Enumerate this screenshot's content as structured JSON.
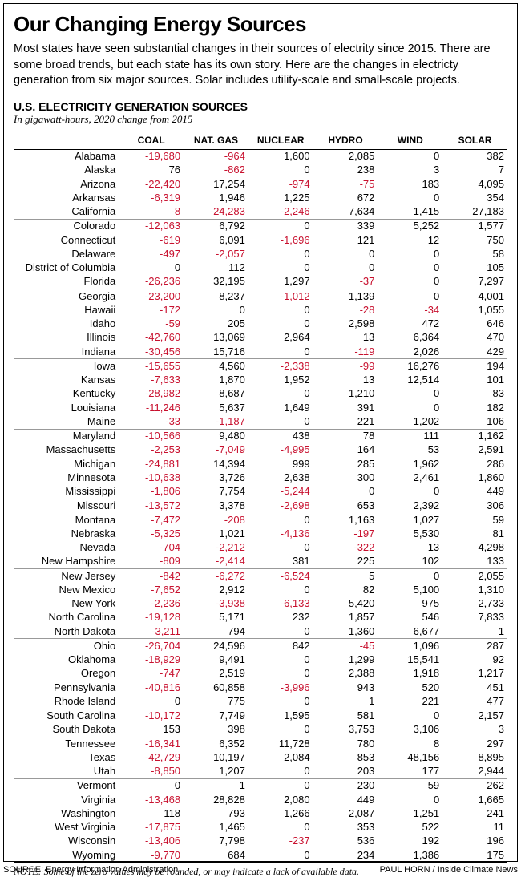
{
  "title": "Our Changing Energy Sources",
  "intro": "Most states have seen substantial changes in their sources of electrity since 2015. There are some broad trends, but each state has its own story. Here are the changes in electricty generation from six major sources. Solar includes utility-scale and small-scale projects.",
  "subtitle": "U.S. ELECTRICITY GENERATION SOURCES",
  "units": "In gigawatt-hours, 2020 change from 2015",
  "columns": [
    "COAL",
    "NAT. GAS",
    "NUCLEAR",
    "HYDRO",
    "WIND",
    "SOLAR"
  ],
  "rows": [
    {
      "state": "Alabama",
      "v": [
        -19680,
        -964,
        1600,
        2085,
        0,
        382
      ]
    },
    {
      "state": "Alaska",
      "v": [
        76,
        -862,
        0,
        238,
        3,
        7
      ]
    },
    {
      "state": "Arizona",
      "v": [
        -22420,
        17254,
        -974,
        -75,
        183,
        4095
      ]
    },
    {
      "state": "Arkansas",
      "v": [
        -6319,
        1946,
        1225,
        672,
        0,
        354
      ]
    },
    {
      "state": "California",
      "v": [
        -8,
        -24283,
        -2246,
        7634,
        1415,
        27183
      ],
      "sepAfter": true
    },
    {
      "state": "Colorado",
      "v": [
        -12063,
        6792,
        0,
        339,
        5252,
        1577
      ]
    },
    {
      "state": "Connecticut",
      "v": [
        -619,
        6091,
        -1696,
        121,
        12,
        750
      ]
    },
    {
      "state": "Delaware",
      "v": [
        -497,
        -2057,
        0,
        0,
        0,
        58
      ]
    },
    {
      "state": "District of Columbia",
      "v": [
        0,
        112,
        0,
        0,
        0,
        105
      ]
    },
    {
      "state": "Florida",
      "v": [
        -26236,
        32195,
        1297,
        -37,
        0,
        7297
      ],
      "sepAfter": true
    },
    {
      "state": "Georgia",
      "v": [
        -23200,
        8237,
        -1012,
        1139,
        0,
        4001
      ]
    },
    {
      "state": "Hawaii",
      "v": [
        -172,
        0,
        0,
        -28,
        -34,
        1055
      ]
    },
    {
      "state": "Idaho",
      "v": [
        -59,
        205,
        0,
        2598,
        472,
        646
      ]
    },
    {
      "state": "Illinois",
      "v": [
        -42760,
        13069,
        2964,
        13,
        6364,
        470
      ]
    },
    {
      "state": "Indiana",
      "v": [
        -30456,
        15716,
        0,
        -119,
        2026,
        429
      ],
      "sepAfter": true
    },
    {
      "state": "Iowa",
      "v": [
        -15655,
        4560,
        -2338,
        -99,
        16276,
        194
      ]
    },
    {
      "state": "Kansas",
      "v": [
        -7633,
        1870,
        1952,
        13,
        12514,
        101
      ]
    },
    {
      "state": "Kentucky",
      "v": [
        -28982,
        8687,
        0,
        1210,
        0,
        83
      ]
    },
    {
      "state": "Louisiana",
      "v": [
        -11246,
        5637,
        1649,
        391,
        0,
        182
      ]
    },
    {
      "state": "Maine",
      "v": [
        -33,
        -1187,
        0,
        221,
        1202,
        106
      ],
      "sepAfter": true
    },
    {
      "state": "Maryland",
      "v": [
        -10566,
        9480,
        438,
        78,
        111,
        1162
      ]
    },
    {
      "state": "Massachusetts",
      "v": [
        -2253,
        -7049,
        -4995,
        164,
        53,
        2591
      ]
    },
    {
      "state": "Michigan",
      "v": [
        -24881,
        14394,
        999,
        285,
        1962,
        286
      ]
    },
    {
      "state": "Minnesota",
      "v": [
        -10638,
        3726,
        2638,
        300,
        2461,
        1860
      ]
    },
    {
      "state": "Mississippi",
      "v": [
        -1806,
        7754,
        -5244,
        0,
        0,
        449
      ],
      "sepAfter": true
    },
    {
      "state": "Missouri",
      "v": [
        -13572,
        3378,
        -2698,
        653,
        2392,
        306
      ]
    },
    {
      "state": "Montana",
      "v": [
        -7472,
        -208,
        0,
        1163,
        1027,
        59
      ]
    },
    {
      "state": "Nebraska",
      "v": [
        -5325,
        1021,
        -4136,
        -197,
        5530,
        81
      ]
    },
    {
      "state": "Nevada",
      "v": [
        -704,
        -2212,
        0,
        -322,
        13,
        4298
      ]
    },
    {
      "state": "New Hampshire",
      "v": [
        -809,
        -2414,
        381,
        225,
        102,
        133
      ],
      "sepAfter": true
    },
    {
      "state": "New Jersey",
      "v": [
        -842,
        -6272,
        -6524,
        5,
        0,
        2055
      ]
    },
    {
      "state": "New Mexico",
      "v": [
        -7652,
        2912,
        0,
        82,
        5100,
        1310
      ]
    },
    {
      "state": "New York",
      "v": [
        -2236,
        -3938,
        -6133,
        5420,
        975,
        2733
      ]
    },
    {
      "state": "North Carolina",
      "v": [
        -19128,
        5171,
        232,
        1857,
        546,
        7833
      ]
    },
    {
      "state": "North Dakota",
      "v": [
        -3211,
        794,
        0,
        1360,
        6677,
        1
      ],
      "sepAfter": true
    },
    {
      "state": "Ohio",
      "v": [
        -26704,
        24596,
        842,
        -45,
        1096,
        287
      ]
    },
    {
      "state": "Oklahoma",
      "v": [
        -18929,
        9491,
        0,
        1299,
        15541,
        92
      ]
    },
    {
      "state": "Oregon",
      "v": [
        -747,
        2519,
        0,
        2388,
        1918,
        1217
      ]
    },
    {
      "state": "Pennsylvania",
      "v": [
        -40816,
        60858,
        -3996,
        943,
        520,
        451
      ]
    },
    {
      "state": "Rhode Island",
      "v": [
        0,
        775,
        0,
        1,
        221,
        477
      ],
      "sepAfter": true
    },
    {
      "state": "South Carolina",
      "v": [
        -10172,
        7749,
        1595,
        581,
        0,
        2157
      ]
    },
    {
      "state": "South Dakota",
      "v": [
        153,
        398,
        0,
        3753,
        3106,
        3
      ]
    },
    {
      "state": "Tennessee",
      "v": [
        -16341,
        6352,
        11728,
        780,
        8,
        297
      ]
    },
    {
      "state": "Texas",
      "v": [
        -42729,
        10197,
        2084,
        853,
        48156,
        8895
      ]
    },
    {
      "state": "Utah",
      "v": [
        -8850,
        1207,
        0,
        203,
        177,
        2944
      ],
      "sepAfter": true
    },
    {
      "state": "Vermont",
      "v": [
        0,
        1,
        0,
        230,
        59,
        262
      ]
    },
    {
      "state": "Virginia",
      "v": [
        -13468,
        28828,
        2080,
        449,
        0,
        1665
      ]
    },
    {
      "state": "Washington",
      "v": [
        118,
        793,
        1266,
        2087,
        1251,
        241
      ]
    },
    {
      "state": "West Virginia",
      "v": [
        -17875,
        1465,
        0,
        353,
        522,
        11
      ]
    },
    {
      "state": "Wisconsin",
      "v": [
        -13406,
        7798,
        -237,
        536,
        192,
        196
      ]
    },
    {
      "state": "Wyoming",
      "v": [
        -9770,
        684,
        0,
        234,
        1386,
        175
      ]
    }
  ],
  "note": "NOTE: Some of the zero values may be rounded, or may indicate a lack of available data.",
  "source": "SOURCE: Energy Information Administration",
  "credit": "PAUL HORN / Inside Climate News",
  "colors": {
    "neg": "#c8102e",
    "pos": "#000000",
    "border": "#000000",
    "sep": "#999999"
  }
}
